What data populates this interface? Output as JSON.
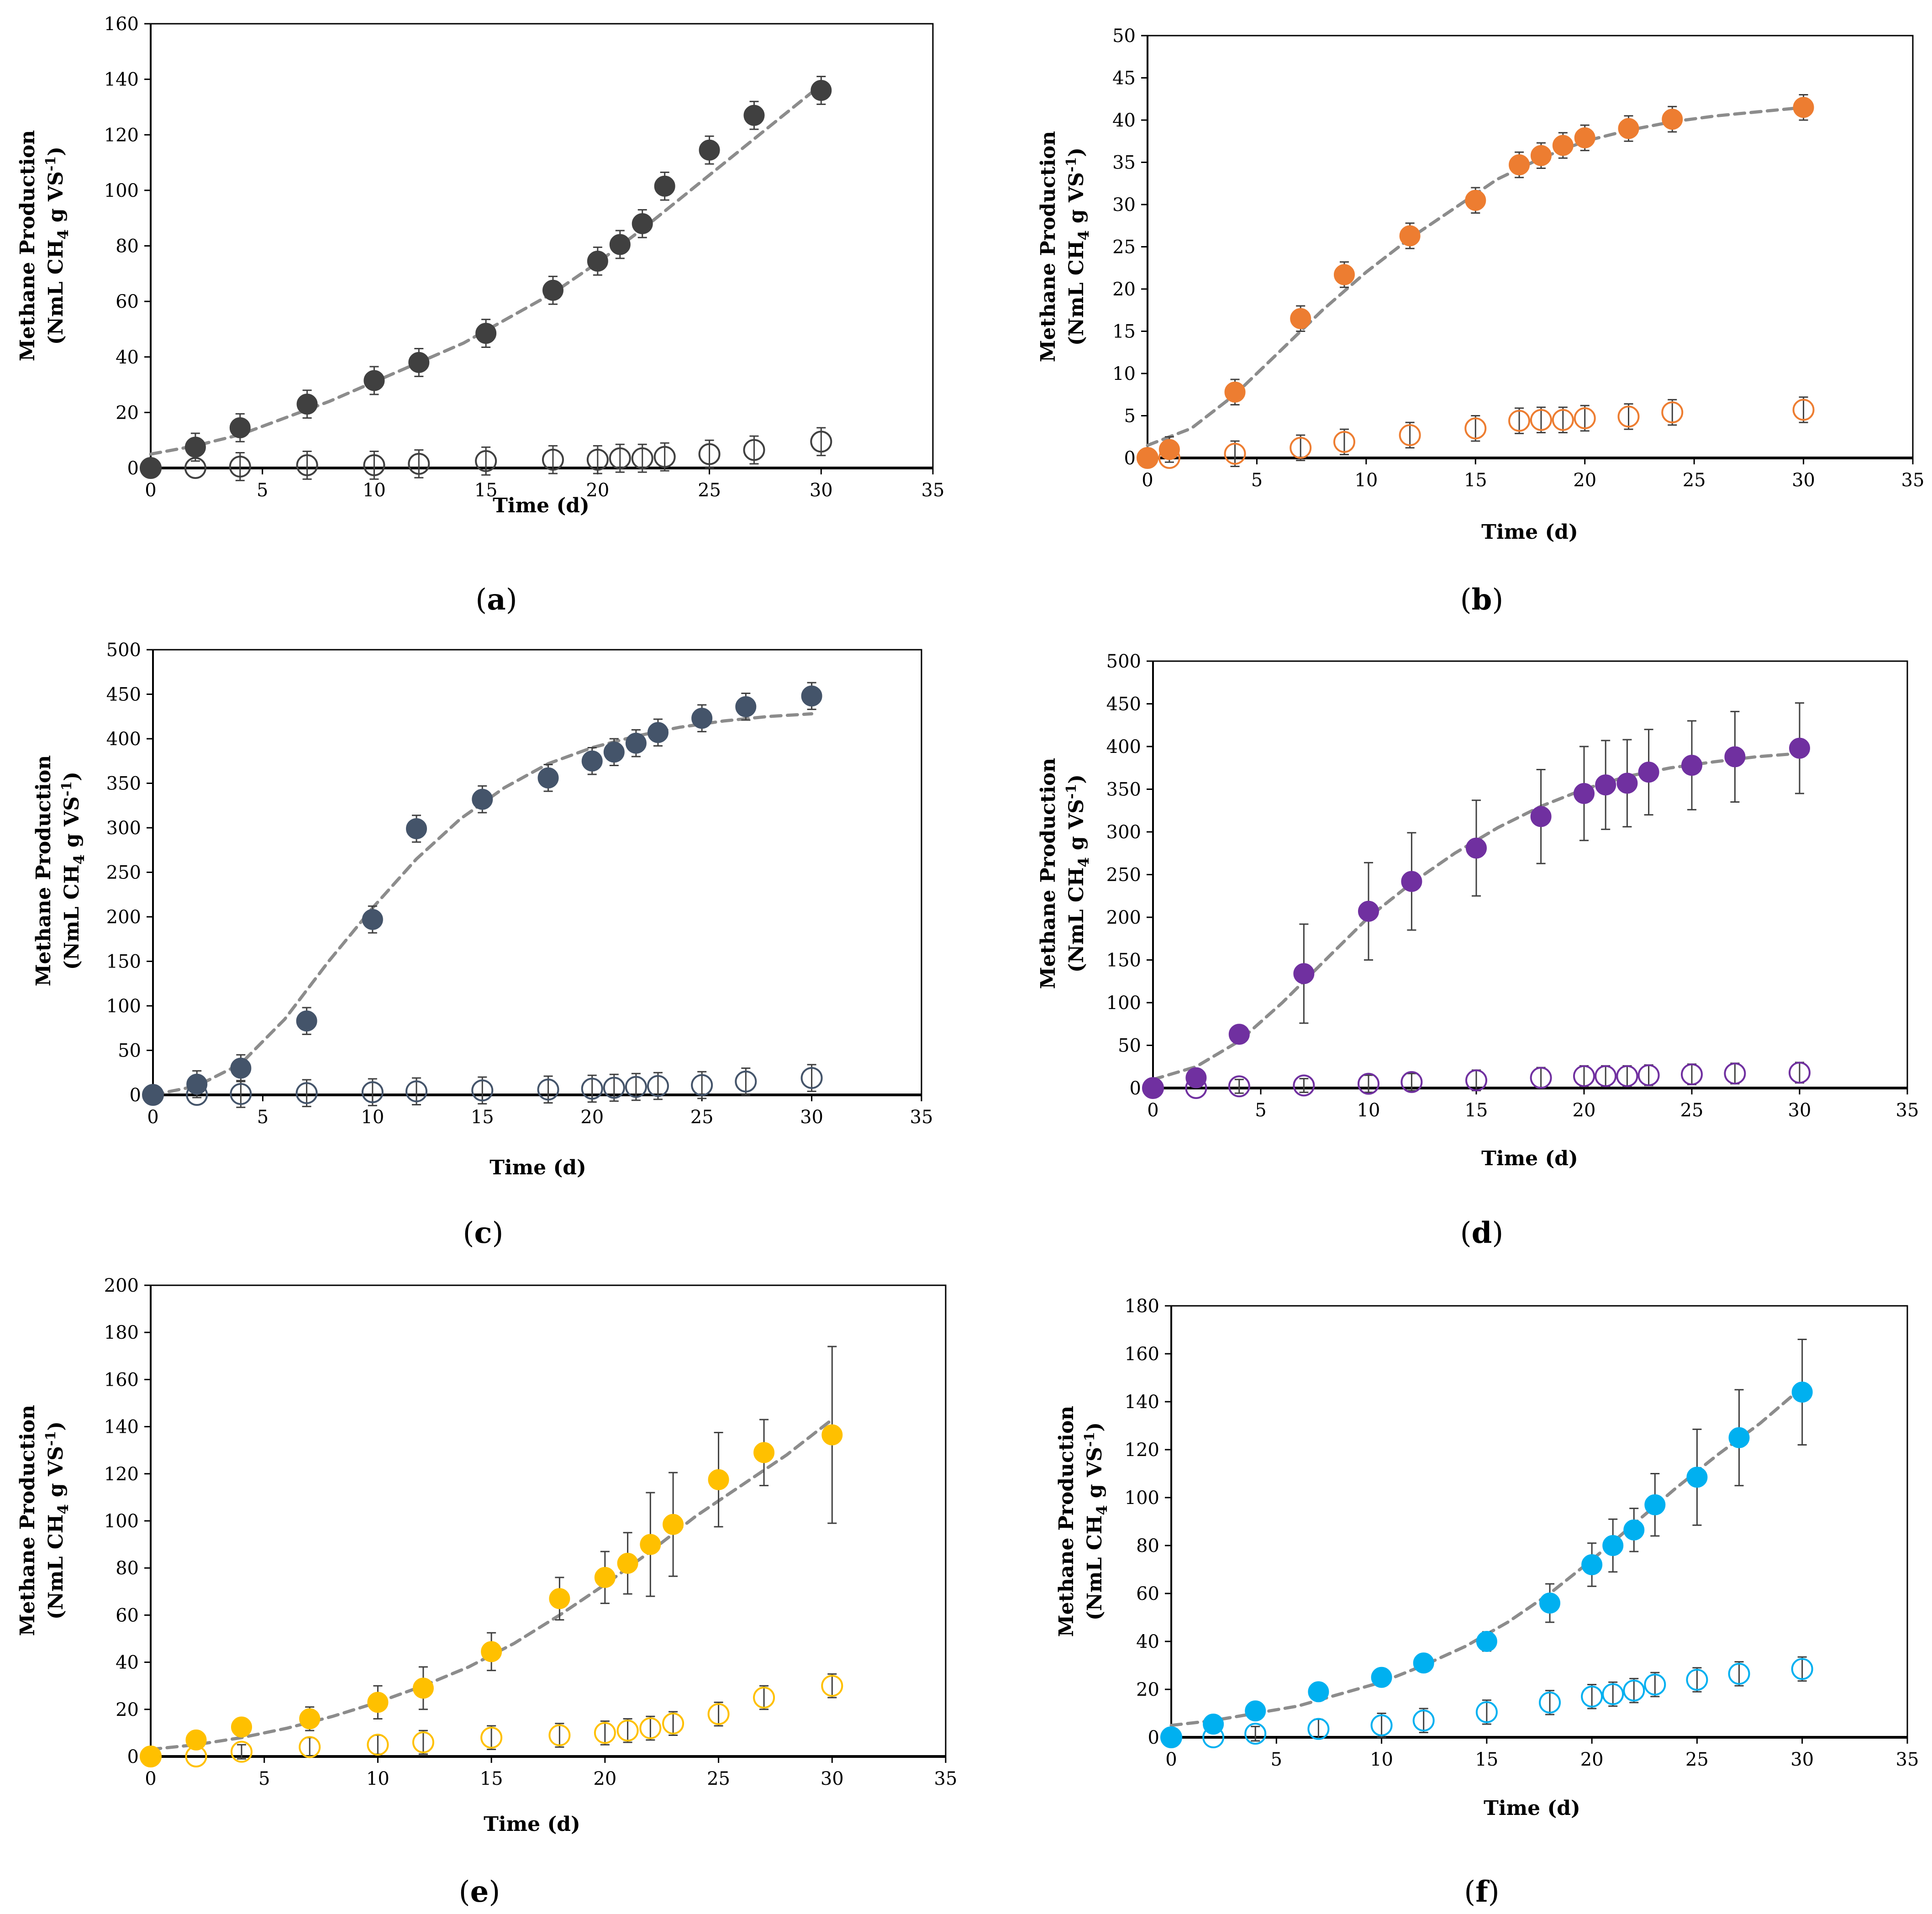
{
  "figure": {
    "common": {
      "xlabel": "Time (d)",
      "ylabel_line1": "Methane Production",
      "ylabel_line2_parts": [
        "(NmL CH",
        "4",
        " g VS",
        "-1",
        ")"
      ],
      "curve_color": "#8c8c8c",
      "axis_color": "#000000"
    }
  },
  "chart_data": [
    {
      "id": "a",
      "type": "scatter",
      "caption_letter": "a",
      "color": "#404040",
      "xlabel": "Time (d)",
      "ylabel": "Methane Production (NmL CH4 g VS-1)",
      "xlim": [
        0,
        35
      ],
      "xticks": [
        0,
        5,
        10,
        15,
        20,
        25,
        30,
        35
      ],
      "ylim": [
        0,
        160
      ],
      "yticks": [
        0,
        20,
        40,
        60,
        80,
        100,
        120,
        140,
        160
      ],
      "series": [
        {
          "name": "sample",
          "style": "filled",
          "x": [
            0,
            2,
            4,
            7,
            10,
            12,
            15,
            18,
            20,
            21,
            22,
            23,
            25,
            27,
            30
          ],
          "y": [
            0,
            7.5,
            14.5,
            23,
            31.5,
            38,
            48.5,
            64,
            74.5,
            80.5,
            88,
            101.5,
            114.5,
            127,
            136
          ],
          "err": [
            0,
            5,
            5,
            5,
            5,
            5,
            5,
            5,
            5,
            5,
            5,
            5,
            5,
            5,
            5
          ]
        },
        {
          "name": "control",
          "style": "open",
          "x": [
            0,
            2,
            4,
            7,
            10,
            12,
            15,
            18,
            20,
            21,
            22,
            23,
            25,
            27,
            30
          ],
          "y": [
            0,
            0,
            0.5,
            1,
            1,
            1.5,
            2.5,
            3,
            3,
            3.5,
            3.5,
            4,
            5,
            6.5,
            9.5
          ],
          "err": [
            0,
            0,
            5,
            5,
            5,
            5,
            5,
            5,
            5,
            5,
            5,
            5,
            5,
            5,
            5
          ]
        },
        {
          "name": "fit",
          "style": "dashed",
          "x": [
            0,
            2,
            4,
            6,
            8,
            10,
            12,
            14,
            16,
            18,
            20,
            22,
            24,
            26,
            28,
            30
          ],
          "y": [
            5,
            8,
            12,
            18,
            24,
            31,
            38,
            45,
            54,
            63,
            74,
            86,
            99,
            112,
            125,
            138
          ]
        }
      ]
    },
    {
      "id": "b",
      "type": "scatter",
      "caption_letter": "b",
      "color": "#ed7d31",
      "xlabel": "Time (d)",
      "ylabel": "Methane Production (NmL CH4 g VS-1)",
      "xlim": [
        0,
        35
      ],
      "xticks": [
        0,
        5,
        10,
        15,
        20,
        25,
        30,
        35
      ],
      "ylim": [
        0,
        50
      ],
      "yticks": [
        0,
        5,
        10,
        15,
        20,
        25,
        30,
        35,
        40,
        45,
        50
      ],
      "series": [
        {
          "name": "sample",
          "style": "filled",
          "x": [
            0,
            1,
            4,
            7,
            9,
            12,
            15,
            17,
            18,
            19,
            20,
            22,
            24,
            30
          ],
          "y": [
            0,
            1,
            7.8,
            16.5,
            21.7,
            26.3,
            30.5,
            34.7,
            35.8,
            37,
            37.9,
            39,
            40.1,
            41.5
          ],
          "err": [
            0,
            1.5,
            1.5,
            1.5,
            1.5,
            1.5,
            1.5,
            1.5,
            1.5,
            1.5,
            1.5,
            1.5,
            1.5,
            1.5
          ]
        },
        {
          "name": "control",
          "style": "open",
          "x": [
            0,
            1,
            4,
            7,
            9,
            12,
            15,
            17,
            18,
            19,
            20,
            22,
            24,
            30
          ],
          "y": [
            0,
            0,
            0.5,
            1.2,
            1.9,
            2.7,
            3.5,
            4.4,
            4.5,
            4.5,
            4.7,
            4.9,
            5.4,
            5.7
          ],
          "err": [
            0,
            0,
            1.5,
            1.5,
            1.5,
            1.5,
            1.5,
            1.5,
            1.5,
            1.5,
            1.5,
            1.5,
            1.5,
            1.5
          ]
        },
        {
          "name": "fit",
          "style": "dashed",
          "x": [
            0,
            2,
            4,
            6,
            8,
            10,
            12,
            14,
            16,
            18,
            20,
            22,
            24,
            26,
            28,
            30
          ],
          "y": [
            1.5,
            3.5,
            7.5,
            12.5,
            17.5,
            22,
            26,
            29.5,
            33,
            35.5,
            37.5,
            38.8,
            39.8,
            40.5,
            41,
            41.5
          ]
        }
      ]
    },
    {
      "id": "c",
      "type": "scatter",
      "caption_letter": "c",
      "color": "#44546a",
      "xlabel": "Time (d)",
      "ylabel": "Methane Production (NmL CH4 g VS-1)",
      "xlim": [
        0,
        35
      ],
      "xticks": [
        0,
        5,
        10,
        15,
        20,
        25,
        30,
        35
      ],
      "ylim": [
        0,
        500
      ],
      "yticks": [
        0,
        50,
        100,
        150,
        200,
        250,
        300,
        350,
        400,
        450,
        500
      ],
      "series": [
        {
          "name": "sample",
          "style": "filled",
          "x": [
            0,
            2,
            4,
            7,
            10,
            12,
            15,
            18,
            20,
            21,
            22,
            23,
            25,
            27,
            30
          ],
          "y": [
            0,
            12,
            30,
            83,
            197,
            299,
            332,
            356,
            375,
            385,
            395,
            407,
            423,
            436,
            448
          ],
          "err": [
            0,
            15,
            15,
            15,
            15,
            15,
            15,
            15,
            15,
            15,
            15,
            15,
            15,
            15,
            15
          ]
        },
        {
          "name": "control",
          "style": "open",
          "x": [
            0,
            2,
            4,
            7,
            10,
            12,
            15,
            18,
            20,
            21,
            22,
            23,
            25,
            27,
            30
          ],
          "y": [
            0,
            0,
            1,
            2,
            3,
            4,
            5,
            6,
            7,
            8,
            9,
            10,
            11,
            15,
            19
          ],
          "err": [
            0,
            0,
            15,
            15,
            15,
            15,
            15,
            15,
            15,
            15,
            15,
            15,
            15,
            15,
            15
          ]
        },
        {
          "name": "fit",
          "style": "dashed",
          "x": [
            0,
            2,
            4,
            6,
            8,
            10,
            12,
            14,
            16,
            18,
            20,
            22,
            24,
            26,
            28,
            30
          ],
          "y": [
            0,
            10,
            35,
            85,
            150,
            210,
            265,
            310,
            345,
            372,
            390,
            403,
            413,
            420,
            425,
            428
          ]
        }
      ]
    },
    {
      "id": "d",
      "type": "scatter",
      "caption_letter": "d",
      "color": "#7030a0",
      "xlabel": "Time (d)",
      "ylabel": "Methane Production (NmL CH4 g VS-1)",
      "xlim": [
        0,
        35
      ],
      "xticks": [
        0,
        5,
        10,
        15,
        20,
        25,
        30,
        35
      ],
      "ylim": [
        0,
        500
      ],
      "yticks": [
        0,
        50,
        100,
        150,
        200,
        250,
        300,
        350,
        400,
        450,
        500
      ],
      "series": [
        {
          "name": "sample",
          "style": "filled",
          "x": [
            0,
            2,
            4,
            7,
            10,
            12,
            15,
            18,
            20,
            21,
            22,
            23,
            25,
            27,
            30
          ],
          "y": [
            0,
            12,
            63,
            134,
            207,
            242,
            281,
            318,
            345,
            355,
            357,
            370,
            378,
            388,
            398
          ],
          "err": [
            0,
            0,
            0,
            58,
            57,
            57,
            56,
            55,
            55,
            52,
            51,
            50,
            52,
            53,
            53
          ]
        },
        {
          "name": "control",
          "style": "open",
          "x": [
            0,
            2,
            4,
            7,
            10,
            12,
            15,
            18,
            20,
            21,
            22,
            23,
            25,
            27,
            30
          ],
          "y": [
            0,
            0,
            2,
            3,
            5,
            7,
            9,
            12,
            14,
            14,
            14,
            15,
            16,
            17,
            18
          ],
          "err": [
            0,
            0,
            8,
            8,
            10,
            10,
            12,
            12,
            12,
            12,
            12,
            12,
            12,
            12,
            12
          ]
        },
        {
          "name": "fit",
          "style": "dashed",
          "x": [
            0,
            2,
            4,
            6,
            8,
            10,
            12,
            14,
            16,
            18,
            20,
            22,
            24,
            26,
            28,
            30
          ],
          "y": [
            10,
            25,
            55,
            100,
            150,
            200,
            240,
            275,
            305,
            330,
            350,
            365,
            375,
            382,
            388,
            392
          ]
        }
      ]
    },
    {
      "id": "e",
      "type": "scatter",
      "caption_letter": "e",
      "color": "#ffc000",
      "xlabel": "Time (d)",
      "ylabel": "Methane Production (NmL CH4 g VS-1)",
      "xlim": [
        0,
        35
      ],
      "xticks": [
        0,
        5,
        10,
        15,
        20,
        25,
        30,
        35
      ],
      "ylim": [
        0,
        200
      ],
      "yticks": [
        0,
        20,
        40,
        60,
        80,
        100,
        120,
        140,
        160,
        180,
        200
      ],
      "series": [
        {
          "name": "sample",
          "style": "filled",
          "x": [
            0,
            2,
            4,
            7,
            10,
            12,
            15,
            18,
            20,
            21,
            22,
            23,
            25,
            27,
            30
          ],
          "y": [
            0,
            7,
            12.5,
            16,
            23,
            29,
            44.5,
            67,
            76,
            82,
            90,
            98.5,
            117.5,
            129,
            136.5
          ],
          "err": [
            0,
            0,
            0,
            5,
            7,
            9,
            8,
            9,
            11,
            13,
            22,
            22,
            20,
            14,
            37.5
          ]
        },
        {
          "name": "control",
          "style": "open",
          "x": [
            0,
            2,
            4,
            7,
            10,
            12,
            15,
            18,
            20,
            21,
            22,
            23,
            25,
            27,
            30
          ],
          "y": [
            0,
            0,
            2,
            4,
            5,
            6,
            8,
            9,
            10,
            11,
            12,
            14,
            18,
            25,
            30
          ],
          "err": [
            0,
            0,
            3,
            4,
            4,
            5,
            5,
            5,
            5,
            5,
            5,
            5,
            5,
            5,
            5
          ]
        },
        {
          "name": "fit",
          "style": "dashed",
          "x": [
            0,
            2,
            4,
            6,
            8,
            10,
            12,
            14,
            16,
            18,
            20,
            22,
            24,
            26,
            28,
            30
          ],
          "y": [
            3,
            5,
            8,
            12,
            17,
            23,
            30,
            38,
            48,
            60,
            73,
            87,
            102,
            115,
            128,
            143
          ]
        }
      ]
    },
    {
      "id": "f",
      "type": "scatter",
      "caption_letter": "f",
      "color": "#00b0f0",
      "xlabel": "Time (d)",
      "ylabel": "Methane Production (NmL CH4 g VS-1)",
      "xlim": [
        0,
        35
      ],
      "xticks": [
        0,
        5,
        10,
        15,
        20,
        25,
        30,
        35
      ],
      "ylim": [
        0,
        180
      ],
      "yticks": [
        0,
        20,
        40,
        60,
        80,
        100,
        120,
        140,
        160,
        180
      ],
      "series": [
        {
          "name": "sample",
          "style": "filled",
          "x": [
            0,
            2,
            4,
            7,
            10,
            12,
            15,
            18,
            20,
            21,
            22,
            23,
            25,
            27,
            30
          ],
          "y": [
            0,
            5.5,
            11,
            19,
            25,
            31,
            40,
            56,
            72,
            80,
            86.5,
            97,
            108.5,
            125,
            144
          ],
          "err": [
            0,
            0,
            0,
            0,
            0,
            0,
            4,
            8,
            9,
            11,
            9,
            13,
            20,
            20,
            22
          ]
        },
        {
          "name": "control",
          "style": "open",
          "x": [
            0,
            2,
            4,
            7,
            10,
            12,
            15,
            18,
            20,
            21,
            22,
            23,
            25,
            27,
            30
          ],
          "y": [
            0,
            0,
            1.5,
            3.5,
            5,
            7,
            10.5,
            14.5,
            17,
            18,
            19.5,
            22,
            24,
            26.5,
            28.5
          ],
          "err": [
            0,
            0,
            3,
            4,
            5,
            5,
            5,
            5,
            5,
            5,
            5,
            5,
            5,
            5,
            5
          ]
        },
        {
          "name": "fit",
          "style": "dashed",
          "x": [
            0,
            2,
            4,
            6,
            8,
            10,
            12,
            14,
            16,
            18,
            20,
            22,
            24,
            26,
            28,
            30
          ],
          "y": [
            5,
            7,
            10,
            13,
            18,
            23,
            30,
            38,
            48,
            60,
            74,
            89,
            104,
            118,
            131,
            146
          ]
        }
      ]
    }
  ]
}
